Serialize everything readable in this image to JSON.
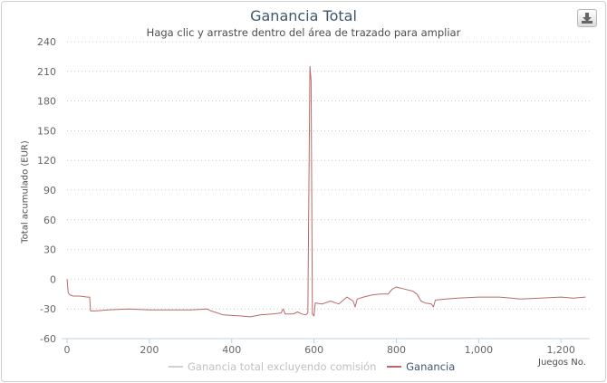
{
  "header": {
    "title": "Ganancia Total",
    "subtitle": "Haga clic y arrastre dentro del área de trazado para ampliar"
  },
  "icons": {
    "export": "download-icon"
  },
  "legend": {
    "items": [
      {
        "label": "Ganancia total excluyendo comisión",
        "color": "#d0d0d0",
        "active": false
      },
      {
        "label": "Ganancia",
        "color": "#b86a6a",
        "active": true
      }
    ]
  },
  "chart_data": {
    "type": "line",
    "title": "Ganancia Total",
    "subtitle": "Haga clic y arrastre dentro del área de trazado para ampliar",
    "xlabel": "Juegos No.",
    "ylabel": "Total acumulado (EUR)",
    "xlim": [
      0,
      1270
    ],
    "ylim": [
      -60,
      240
    ],
    "xticks": [
      0,
      200,
      400,
      600,
      800,
      1000,
      1200
    ],
    "xtick_labels": [
      "0",
      "200",
      "400",
      "600",
      "800",
      "1,000",
      "1,200"
    ],
    "yticks": [
      -60,
      -30,
      0,
      30,
      60,
      90,
      120,
      150,
      180,
      210,
      240
    ],
    "yaxis_grid": true,
    "xaxis_grid": false,
    "legend_position": "bottom",
    "series": [
      {
        "name": "Ganancia",
        "color": "#b86a6a",
        "points": [
          [
            0,
            0
          ],
          [
            3,
            -14
          ],
          [
            8,
            -16
          ],
          [
            15,
            -17
          ],
          [
            30,
            -17
          ],
          [
            50,
            -18
          ],
          [
            55,
            -18
          ],
          [
            57,
            -32
          ],
          [
            70,
            -32
          ],
          [
            100,
            -31
          ],
          [
            150,
            -30
          ],
          [
            200,
            -31
          ],
          [
            250,
            -31
          ],
          [
            300,
            -31
          ],
          [
            340,
            -30
          ],
          [
            350,
            -32
          ],
          [
            380,
            -36
          ],
          [
            420,
            -37
          ],
          [
            445,
            -38
          ],
          [
            470,
            -36
          ],
          [
            500,
            -35
          ],
          [
            520,
            -34
          ],
          [
            525,
            -30
          ],
          [
            530,
            -35
          ],
          [
            550,
            -35
          ],
          [
            560,
            -33
          ],
          [
            570,
            -35
          ],
          [
            580,
            -36
          ],
          [
            585,
            -34
          ],
          [
            590,
            215
          ],
          [
            593,
            200
          ],
          [
            596,
            -35
          ],
          [
            600,
            -37
          ],
          [
            603,
            -24
          ],
          [
            620,
            -25
          ],
          [
            640,
            -22
          ],
          [
            660,
            -25
          ],
          [
            680,
            -18
          ],
          [
            695,
            -22
          ],
          [
            700,
            -28
          ],
          [
            705,
            -20
          ],
          [
            720,
            -18
          ],
          [
            740,
            -16
          ],
          [
            760,
            -15
          ],
          [
            780,
            -15
          ],
          [
            790,
            -10
          ],
          [
            800,
            -8
          ],
          [
            820,
            -10
          ],
          [
            840,
            -12
          ],
          [
            850,
            -15
          ],
          [
            860,
            -22
          ],
          [
            870,
            -24
          ],
          [
            885,
            -25
          ],
          [
            890,
            -28
          ],
          [
            895,
            -21
          ],
          [
            920,
            -20
          ],
          [
            950,
            -19
          ],
          [
            1000,
            -18
          ],
          [
            1050,
            -18
          ],
          [
            1080,
            -19
          ],
          [
            1100,
            -20
          ],
          [
            1150,
            -19
          ],
          [
            1200,
            -18
          ],
          [
            1230,
            -19
          ],
          [
            1260,
            -18
          ]
        ]
      },
      {
        "name": "Ganancia total excluyendo comisión",
        "color": "#d0d0d0",
        "visible": false,
        "points": []
      }
    ]
  }
}
